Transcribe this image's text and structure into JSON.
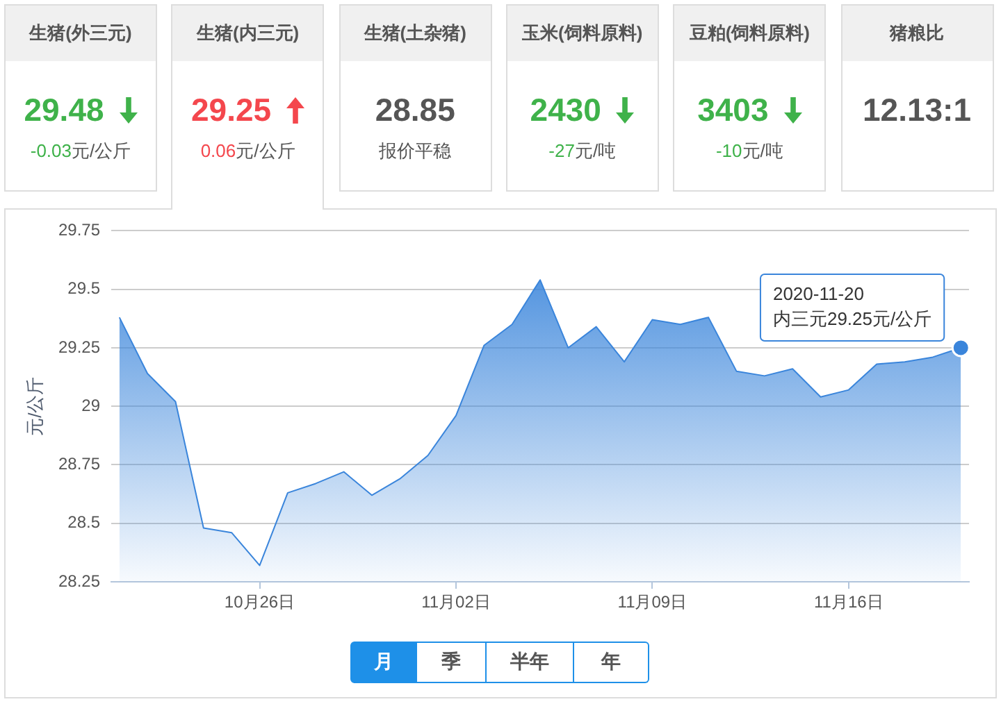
{
  "chart_data": [
    {
      "type": "other",
      "title": "生猪(外三元)",
      "color": "#3fb24a",
      "annotations": [
        "29.48",
        "-0.03元/公斤"
      ]
    },
    {
      "type": "other",
      "title": "生猪(内三元)",
      "color": "#f4474d",
      "annotations": [
        "29.25",
        "0.06元/公斤"
      ]
    },
    {
      "type": "other",
      "title": "生猪(土杂猪)",
      "color": "#555555",
      "annotations": [
        "28.85",
        "报价平稳"
      ]
    },
    {
      "type": "other",
      "title": "玉米(饲料原料)",
      "color": "#3fb24a",
      "annotations": [
        "2430",
        "-27元/吨"
      ]
    },
    {
      "type": "other",
      "title": "豆粕(饲料原料)",
      "color": "#3fb24a",
      "annotations": [
        "3403",
        "-10元/吨"
      ]
    },
    {
      "type": "other",
      "title": "猪粮比",
      "color": "#555555",
      "annotations": [
        "12.13:1"
      ]
    },
    {
      "type": "area",
      "ylabel": "元/公斤",
      "color": "#3a85db",
      "x": [
        "2020-10-21",
        "2020-10-22",
        "2020-10-23",
        "2020-10-24",
        "2020-10-25",
        "2020-10-26",
        "2020-10-27",
        "2020-10-28",
        "2020-10-29",
        "2020-10-30",
        "2020-10-31",
        "2020-11-01",
        "2020-11-02",
        "2020-11-03",
        "2020-11-04",
        "2020-11-05",
        "2020-11-06",
        "2020-11-07",
        "2020-11-08",
        "2020-11-09",
        "2020-11-10",
        "2020-11-11",
        "2020-11-12",
        "2020-11-13",
        "2020-11-14",
        "2020-11-15",
        "2020-11-16",
        "2020-11-17",
        "2020-11-18",
        "2020-11-19",
        "2020-11-20"
      ],
      "values": [
        29.38,
        29.14,
        29.02,
        28.48,
        28.46,
        28.32,
        28.63,
        28.67,
        28.72,
        28.62,
        28.69,
        28.79,
        28.96,
        29.26,
        29.35,
        29.54,
        29.25,
        29.34,
        29.19,
        29.37,
        29.35,
        29.38,
        29.15,
        29.13,
        29.16,
        29.04,
        29.07,
        29.18,
        29.19,
        29.21,
        29.25
      ],
      "xlim": [
        "2020-10-20T17:00",
        "2020-11-20T07:00"
      ],
      "xticks": [
        {
          "value": "2020-10-26",
          "label": "10月26日"
        },
        {
          "value": "2020-11-02",
          "label": "11月02日"
        },
        {
          "value": "2020-11-09",
          "label": "11月09日"
        },
        {
          "value": "2020-11-16",
          "label": "11月16日"
        }
      ],
      "ylim": [
        28.25,
        29.75
      ],
      "yticks": [
        28.25,
        28.5,
        28.75,
        29,
        29.25,
        29.5,
        29.75
      ],
      "grid": "y",
      "annotations": [
        {
          "text": "2020-11-20\n内三元29.25元/公斤",
          "x": "2020-11-20",
          "y": 29.25
        }
      ]
    },
    {
      "type": "other",
      "annotations": [
        "月",
        "季",
        "半年",
        "年"
      ]
    }
  ]
}
